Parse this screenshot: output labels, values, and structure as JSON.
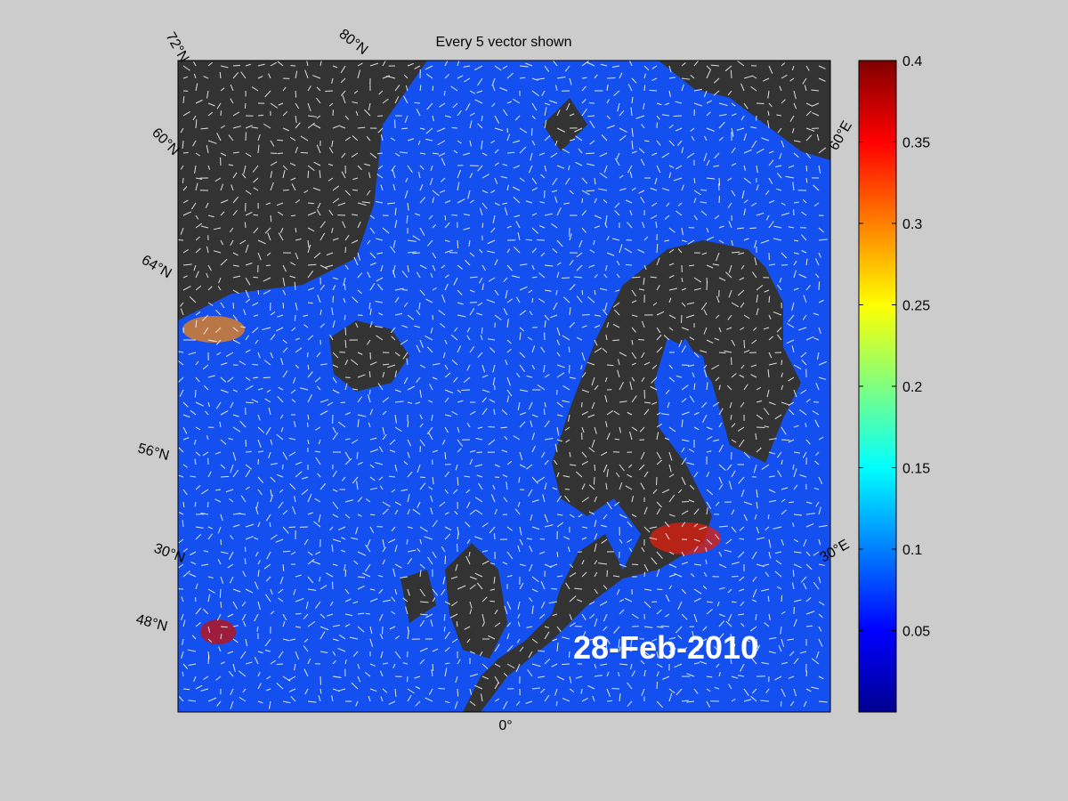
{
  "map": {
    "title": "Every 5 vector shown",
    "date_label": "28-Feb-2010",
    "graticule_labels": [
      "72°N",
      "80°N",
      "60°N",
      "64°N",
      "56°N",
      "30°N",
      "48°N",
      "60°E",
      "30°E",
      "0°"
    ],
    "colorbar": {
      "lim": [
        0,
        0.4
      ],
      "ticks": [
        0.05,
        0.1,
        0.15,
        0.2,
        0.25,
        0.3,
        0.35,
        0.4
      ]
    }
  }
}
